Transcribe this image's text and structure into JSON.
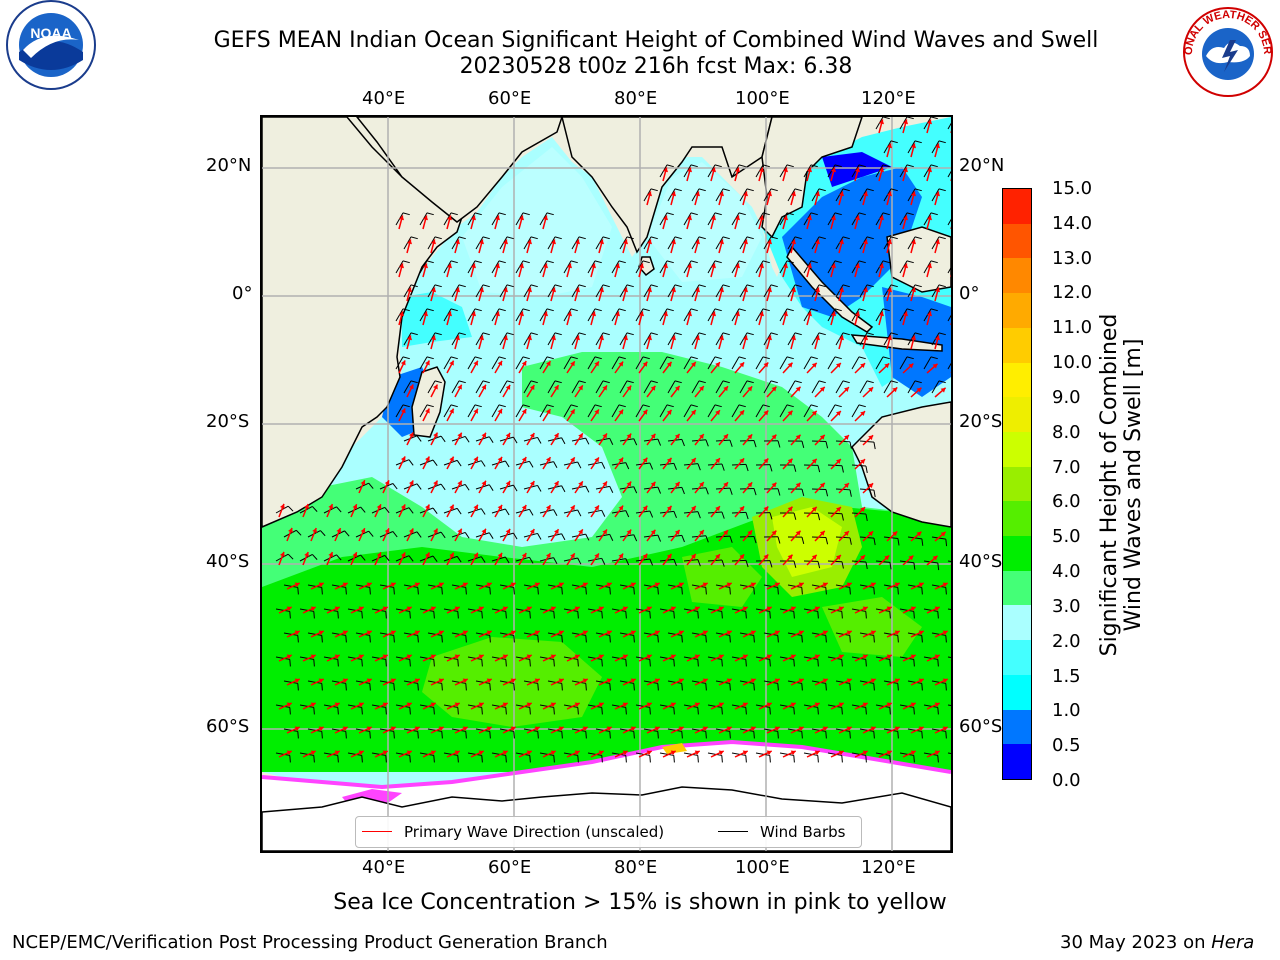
{
  "title": {
    "line1": "GEFS MEAN Indian Ocean Significant Height of Combined Wind Waves and Swell",
    "line2": "20230528 t00z 216h fcst   Max: 6.38"
  },
  "logos": {
    "left": "noaa-logo",
    "left_text": "NOAA",
    "right": "nws-logo",
    "right_text": "NATIONAL WEATHER SERVICE"
  },
  "map": {
    "lon_ticks_top": [
      "40°E",
      "60°E",
      "80°E",
      "100°E",
      "120°E"
    ],
    "lon_ticks_bottom": [
      "40°E",
      "60°E",
      "80°E",
      "100°E",
      "120°E"
    ],
    "lat_ticks_left": [
      "20°N",
      "0°",
      "20°S",
      "40°S",
      "60°S"
    ],
    "lat_ticks_right": [
      "20°N",
      "0°",
      "20°S",
      "40°S",
      "60°S"
    ],
    "land_color": "#efefdf",
    "ice_color": "#ffffff",
    "arrow_color": "#ff0000",
    "barb_color": "#000000"
  },
  "legend": {
    "wave_direction": "Primary Wave Direction (unscaled)",
    "wind_barbs": "Wind Barbs"
  },
  "colorbar": {
    "title_line1": "Significant Height of Combined",
    "title_line2": "Wind Waves and Swell [m]",
    "labels": [
      "15.0",
      "14.0",
      "13.0",
      "12.0",
      "11.0",
      "10.0",
      "9.0",
      "8.0",
      "7.0",
      "6.0",
      "5.0",
      "4.0",
      "3.0",
      "2.0",
      "1.5",
      "1.0",
      "0.5",
      "0.0"
    ],
    "colors": [
      "#0000ff",
      "#0077ff",
      "#00ffff",
      "#44ffff",
      "#aaffff",
      "#44ff77",
      "#00ee00",
      "#55ee00",
      "#99ee00",
      "#ccff00",
      "#eeee00",
      "#ffee00",
      "#ffcc00",
      "#ffaa00",
      "#ff8800",
      "#ff5500",
      "#ff2200"
    ]
  },
  "caption": "Sea Ice Concentration > 15% is shown in pink to yellow",
  "footer": {
    "left": "NCEP/EMC/Verification Post Processing Product Generation Branch",
    "right_prefix": "30 May 2023 on ",
    "right_host": "Hera"
  }
}
